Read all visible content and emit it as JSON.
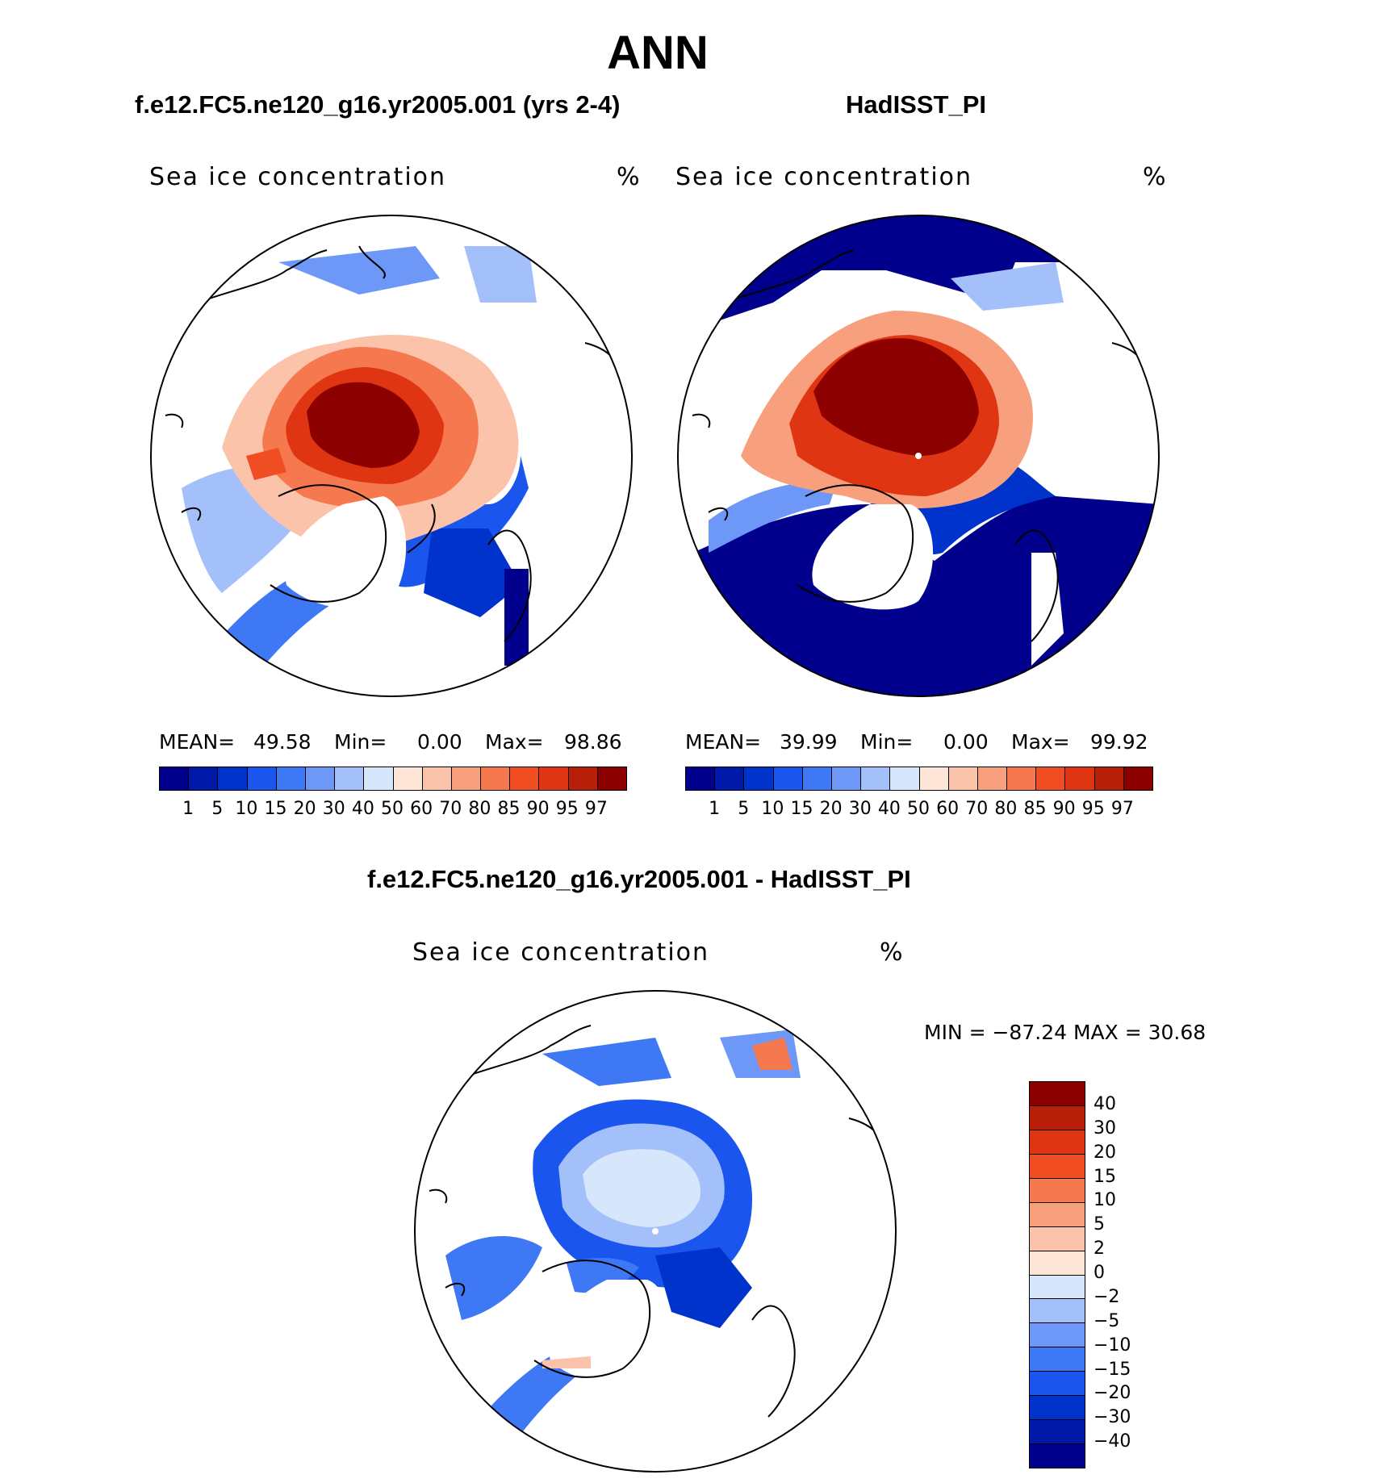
{
  "header": {
    "title": "ANN",
    "left_title": "f.e12.FC5.ne120_g16.yr2005.001 (yrs 2-4)",
    "right_title": "HadISST_PI",
    "diff_title": "f.e12.FC5.ne120_g16.yr2005.001 - HadISST_PI"
  },
  "panels": {
    "left": {
      "field": "Sea ice concentration",
      "units": "%",
      "mean_label": "MEAN=",
      "mean": "49.58",
      "min_label": "Min=",
      "min": "0.00",
      "max_label": "Max=",
      "max": "98.86"
    },
    "right": {
      "field": "Sea ice concentration",
      "units": "%",
      "mean_label": "MEAN=",
      "mean": "39.99",
      "min_label": "Min=",
      "min": "0.00",
      "max_label": "Max=",
      "max": "99.92"
    },
    "diff": {
      "field": "Sea ice concentration",
      "units": "%",
      "minmax": "MIN = −87.24 MAX =   30.68"
    }
  },
  "colorbar_abs": {
    "ticks": [
      "1",
      "5",
      "10",
      "15",
      "20",
      "30",
      "40",
      "50",
      "60",
      "70",
      "80",
      "85",
      "90",
      "95",
      "97"
    ],
    "colors": [
      "#00008c",
      "#0019a8",
      "#0033cc",
      "#1a55ee",
      "#3f78f5",
      "#6e98f7",
      "#a4c0fa",
      "#d6e6fb",
      "#fde5d8",
      "#fbc3aa",
      "#f8a07e",
      "#f6784f",
      "#f04d22",
      "#e03512",
      "#b81f08",
      "#8c0000"
    ]
  },
  "colorbar_diff": {
    "ticks": [
      "40",
      "30",
      "20",
      "15",
      "10",
      "5",
      "2",
      "0",
      "−2",
      "−5",
      "−10",
      "−15",
      "−20",
      "−30",
      "−40"
    ],
    "colors": [
      "#8c0000",
      "#b81f08",
      "#e03512",
      "#f04d22",
      "#f6784f",
      "#f8a07e",
      "#fbc3aa",
      "#fde5d8",
      "#d6e6fb",
      "#a4c0fa",
      "#6e98f7",
      "#3f78f5",
      "#1a55ee",
      "#0033cc",
      "#0019a8",
      "#00008c"
    ]
  }
}
